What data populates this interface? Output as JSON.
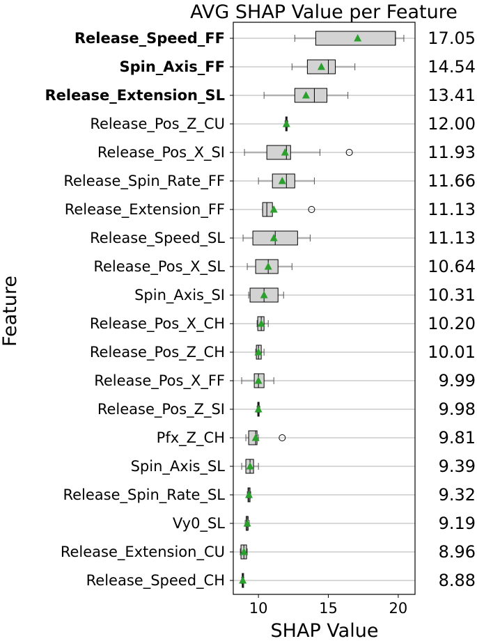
{
  "chart_data": {
    "type": "box",
    "title": "AVG SHAP Value per Feature",
    "xlabel": "SHAP Value",
    "ylabel": "Feature",
    "xlim": [
      8.2,
      21.2
    ],
    "xticks": [
      10,
      15,
      20
    ],
    "grid": "horizontal",
    "colors": {
      "box_fill": "#d3d3d3",
      "box_edge": "#000000",
      "whisker": "#b0b0b0",
      "mean_marker": "#2ca02c",
      "grid": "#b0b0b0",
      "outlier": "#000000"
    },
    "features": [
      {
        "name": "Release_Speed_FF",
        "bold": true,
        "avg_label": "17.05",
        "mean": 17.1,
        "q1": 14.1,
        "median": 19.8,
        "q3": 19.8,
        "whisker_low": 12.6,
        "whisker_high": 20.4,
        "outliers": []
      },
      {
        "name": "Spin_Axis_FF",
        "bold": true,
        "avg_label": "14.54",
        "mean": 14.5,
        "q1": 13.5,
        "median": 15.0,
        "q3": 15.5,
        "whisker_low": 12.4,
        "whisker_high": 16.9,
        "outliers": []
      },
      {
        "name": "Release_Extension_SL",
        "bold": true,
        "avg_label": "13.41",
        "mean": 13.4,
        "q1": 12.6,
        "median": 14.0,
        "q3": 14.9,
        "whisker_low": 10.4,
        "whisker_high": 16.4,
        "outliers": []
      },
      {
        "name": "Release_Pos_Z_CU",
        "bold": false,
        "avg_label": "12.00",
        "mean": 12.0,
        "q1": 11.95,
        "median": 12.0,
        "q3": 12.05,
        "whisker_low": 11.9,
        "whisker_high": 12.1,
        "outliers": []
      },
      {
        "name": "Release_Pos_X_SI",
        "bold": false,
        "avg_label": "11.93",
        "mean": 11.9,
        "q1": 10.6,
        "median": 12.0,
        "q3": 12.3,
        "whisker_low": 9.0,
        "whisker_high": 14.4,
        "outliers": [
          16.5
        ]
      },
      {
        "name": "Release_Spin_Rate_FF",
        "bold": false,
        "avg_label": "11.66",
        "mean": 11.7,
        "q1": 11.0,
        "median": 12.0,
        "q3": 12.6,
        "whisker_low": 10.0,
        "whisker_high": 14.0,
        "outliers": []
      },
      {
        "name": "Release_Extension_FF",
        "bold": false,
        "avg_label": "11.13",
        "mean": 11.1,
        "q1": 10.3,
        "median": 10.6,
        "q3": 11.0,
        "whisker_low": 10.3,
        "whisker_high": 11.0,
        "outliers": [
          13.8
        ]
      },
      {
        "name": "Release_Speed_SL",
        "bold": false,
        "avg_label": "11.13",
        "mean": 11.1,
        "q1": 9.6,
        "median": 11.2,
        "q3": 12.8,
        "whisker_low": 8.9,
        "whisker_high": 13.7,
        "outliers": []
      },
      {
        "name": "Release_Pos_X_SL",
        "bold": false,
        "avg_label": "10.64",
        "mean": 10.7,
        "q1": 9.8,
        "median": 10.7,
        "q3": 11.4,
        "whisker_low": 9.2,
        "whisker_high": 12.4,
        "outliers": []
      },
      {
        "name": "Spin_Axis_SI",
        "bold": false,
        "avg_label": "10.31",
        "mean": 10.4,
        "q1": 9.4,
        "median": 10.4,
        "q3": 11.4,
        "whisker_low": 9.3,
        "whisker_high": 11.8,
        "outliers": []
      },
      {
        "name": "Release_Pos_X_CH",
        "bold": false,
        "avg_label": "10.20",
        "mean": 10.2,
        "q1": 9.95,
        "median": 10.2,
        "q3": 10.4,
        "whisker_low": 9.9,
        "whisker_high": 10.7,
        "outliers": []
      },
      {
        "name": "Release_Pos_Z_CH",
        "bold": false,
        "avg_label": "10.01",
        "mean": 10.0,
        "q1": 9.85,
        "median": 10.0,
        "q3": 10.2,
        "whisker_low": 9.8,
        "whisker_high": 10.4,
        "outliers": []
      },
      {
        "name": "Release_Pos_X_FF",
        "bold": false,
        "avg_label": "9.99",
        "mean": 10.0,
        "q1": 9.7,
        "median": 10.0,
        "q3": 10.4,
        "whisker_low": 8.8,
        "whisker_high": 11.1,
        "outliers": []
      },
      {
        "name": "Release_Pos_Z_SI",
        "bold": false,
        "avg_label": "9.98",
        "mean": 10.0,
        "q1": 9.95,
        "median": 10.0,
        "q3": 10.05,
        "whisker_low": 9.9,
        "whisker_high": 10.1,
        "outliers": []
      },
      {
        "name": "Pfx_Z_CH",
        "bold": false,
        "avg_label": "9.81",
        "mean": 9.8,
        "q1": 9.3,
        "median": 9.8,
        "q3": 9.9,
        "whisker_low": 9.1,
        "whisker_high": 10.0,
        "outliers": [
          11.7
        ]
      },
      {
        "name": "Spin_Axis_SL",
        "bold": false,
        "avg_label": "9.39",
        "mean": 9.4,
        "q1": 9.1,
        "median": 9.4,
        "q3": 9.65,
        "whisker_low": 8.8,
        "whisker_high": 10.0,
        "outliers": []
      },
      {
        "name": "Release_Spin_Rate_SL",
        "bold": false,
        "avg_label": "9.32",
        "mean": 9.32,
        "q1": 9.25,
        "median": 9.32,
        "q3": 9.4,
        "whisker_low": 9.2,
        "whisker_high": 9.45,
        "outliers": []
      },
      {
        "name": "Vy0_SL",
        "bold": false,
        "avg_label": "9.19",
        "mean": 9.2,
        "q1": 9.12,
        "median": 9.2,
        "q3": 9.26,
        "whisker_low": 9.05,
        "whisker_high": 9.35,
        "outliers": []
      },
      {
        "name": "Release_Extension_CU",
        "bold": false,
        "avg_label": "8.96",
        "mean": 8.96,
        "q1": 8.75,
        "median": 8.96,
        "q3": 9.15,
        "whisker_low": 8.7,
        "whisker_high": 9.2,
        "outliers": []
      },
      {
        "name": "Release_Speed_CH",
        "bold": false,
        "avg_label": "8.88",
        "mean": 8.88,
        "q1": 8.84,
        "median": 8.88,
        "q3": 8.92,
        "whisker_low": 8.8,
        "whisker_high": 8.95,
        "outliers": []
      }
    ]
  }
}
